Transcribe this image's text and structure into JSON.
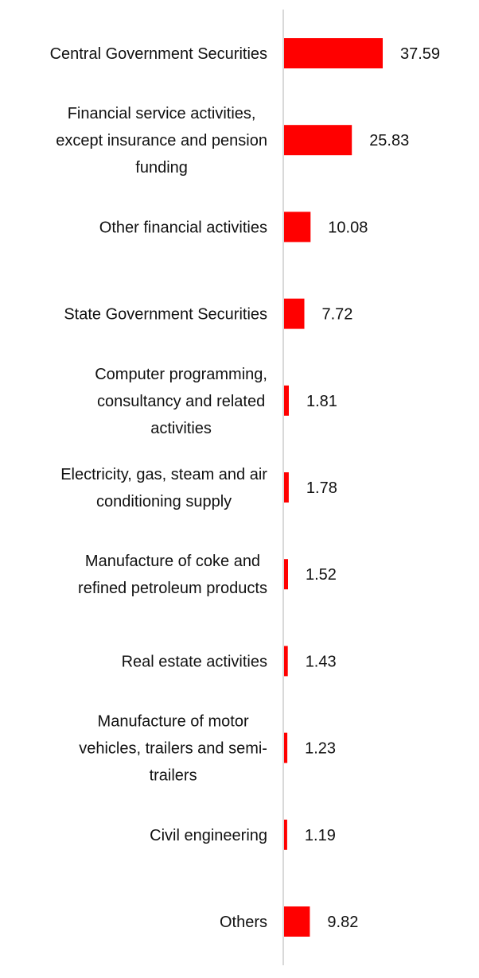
{
  "chart_data": {
    "type": "bar",
    "orientation": "horizontal",
    "title": "",
    "xlabel": "",
    "ylabel": "",
    "grid": false,
    "legend": "none",
    "xlim": [
      0,
      40
    ],
    "colors": {
      "bar": "#ff0000",
      "axis": "#d9d9d9",
      "text": "#111111"
    },
    "categories": [
      [
        "Central Government Securities"
      ],
      [
        "Financial service activities,",
        "except insurance and pension",
        "funding"
      ],
      [
        "Other financial activities"
      ],
      [
        "State Government Securities"
      ],
      [
        "Computer programming,",
        "consultancy and related",
        "activities"
      ],
      [
        "Electricity, gas, steam and air",
        "conditioning supply"
      ],
      [
        "Manufacture of coke and",
        "refined petroleum products"
      ],
      [
        "Real estate activities"
      ],
      [
        "Manufacture of motor",
        "vehicles, trailers and semi-",
        "trailers"
      ],
      [
        "Civil engineering"
      ],
      [
        "Others"
      ]
    ],
    "values": [
      37.59,
      25.83,
      10.08,
      7.72,
      1.81,
      1.78,
      1.52,
      1.43,
      1.23,
      1.19,
      9.82
    ],
    "value_labels": [
      "37.59",
      "25.83",
      "10.08",
      "7.72",
      "1.81",
      "1.78",
      "1.52",
      "1.43",
      "1.23",
      "1.19",
      "9.82"
    ]
  }
}
